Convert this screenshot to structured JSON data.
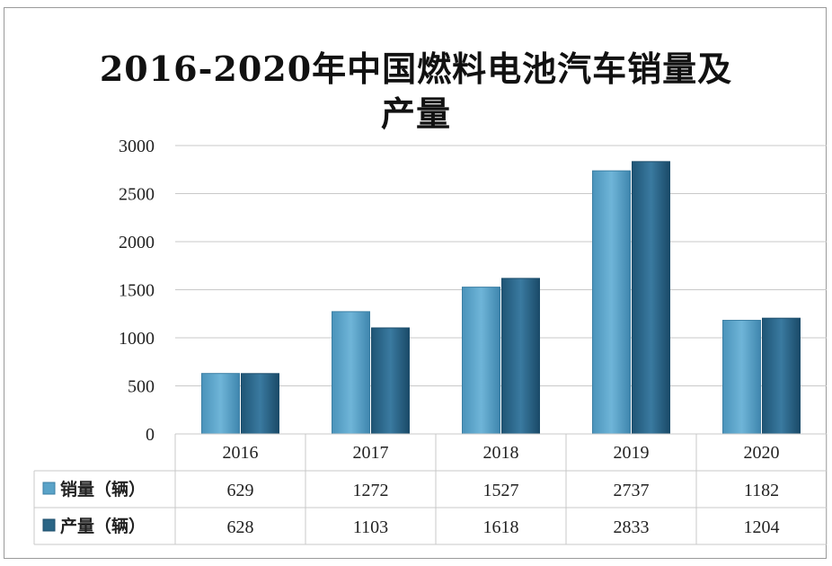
{
  "chart_data": {
    "type": "bar",
    "title_lines": [
      "2016-2020年中国燃料电池汽车销量及",
      "产量"
    ],
    "categories": [
      "2016",
      "2017",
      "2018",
      "2019",
      "2020"
    ],
    "series": [
      {
        "name": "销量（辆）",
        "values": [
          629,
          1272,
          1527,
          2737,
          1182
        ],
        "color": "#5aa3c8"
      },
      {
        "name": "产量（辆）",
        "values": [
          628,
          1103,
          1618,
          2833,
          1204
        ],
        "color": "#2a6585"
      }
    ],
    "ylim": [
      0,
      3000
    ],
    "yticks": [
      0,
      500,
      1000,
      1500,
      2000,
      2500,
      3000
    ],
    "grid": true,
    "legend": "data-table-left"
  }
}
